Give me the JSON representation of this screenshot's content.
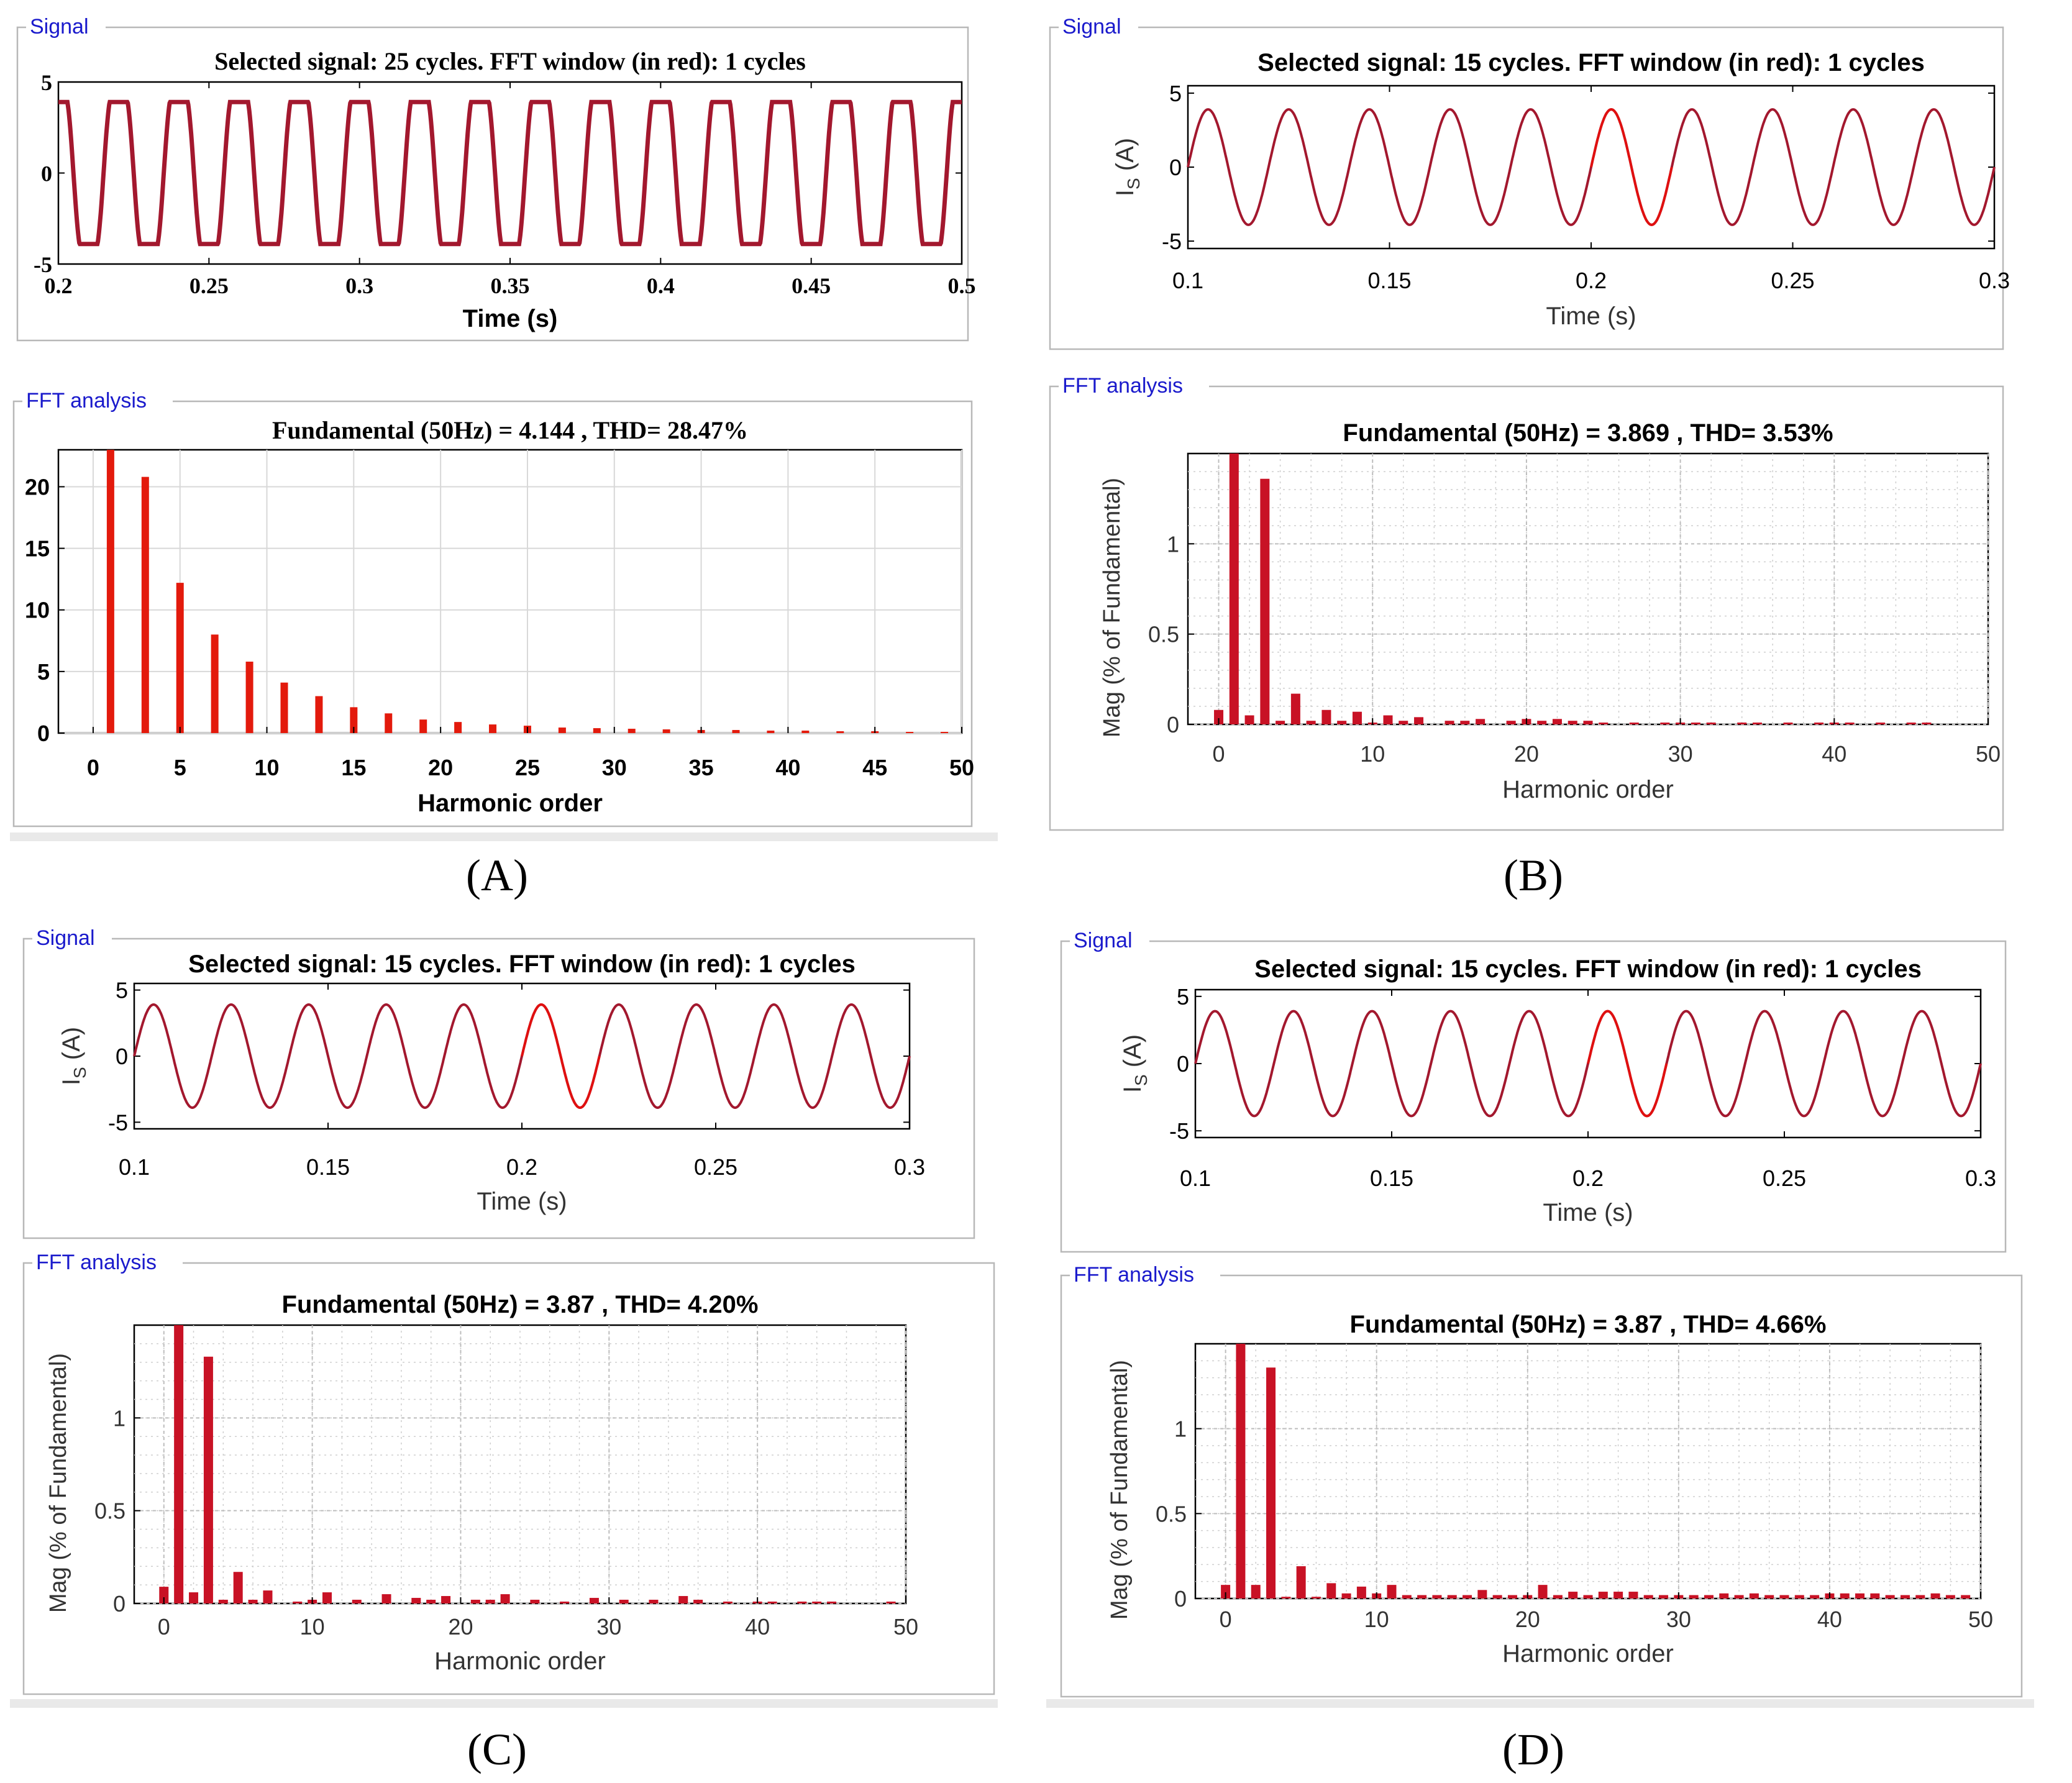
{
  "colors": {
    "signal_line": "#a3182e",
    "fft_window": "#e01010",
    "bar_A": "#e31a0c",
    "bar_other": "#c81225",
    "group_title": "#1a1acc",
    "axis": "#000000",
    "grid": "#d8d8d8"
  },
  "panels": [
    {
      "id": "A",
      "caption": "(A)",
      "style": "serif",
      "signal": {
        "group_title": "Signal",
        "chart_data": {
          "type": "line",
          "title": "Selected signal: 25 cycles. FFT window (in red): 1 cycles",
          "xlabel": "Time (s)",
          "ylabel": "",
          "xlim": [
            0.2,
            0.5
          ],
          "ylim": [
            -5,
            5
          ],
          "xticks": [
            0.2,
            0.25,
            0.3,
            0.35,
            0.4,
            0.45,
            0.5
          ],
          "xtick_labels": [
            "0.2",
            "0.25",
            "0.3",
            "0.35",
            "0.4",
            "0.45",
            "0.5"
          ],
          "yticks": [
            -5,
            0,
            5
          ],
          "ytick_labels": [
            "-5",
            "0",
            "5"
          ],
          "waveform": "distorted",
          "frequency_hz": 50,
          "amplitude": 3.9,
          "phase_cycles": 0.25,
          "window": null
        }
      },
      "fft": {
        "group_title": "FFT analysis",
        "chart_data": {
          "type": "bar",
          "title": "Fundamental (50Hz) = 4.144 , THD= 28.47%",
          "xlabel": "Harmonic order",
          "ylabel": "",
          "xlim": [
            -2,
            50
          ],
          "ylim": [
            0,
            23
          ],
          "xticks": [
            0,
            5,
            10,
            15,
            20,
            25,
            30,
            35,
            40,
            45,
            50
          ],
          "xtick_labels": [
            "0",
            "5",
            "10",
            "15",
            "20",
            "25",
            "30",
            "35",
            "40",
            "45",
            "50"
          ],
          "yticks": [
            0,
            5,
            10,
            15,
            20
          ],
          "ytick_labels": [
            "0",
            "5",
            "10",
            "15",
            "20"
          ],
          "grid": "major",
          "bars": [
            [
              1,
              23
            ],
            [
              3,
              20.8
            ],
            [
              5,
              12.2
            ],
            [
              7,
              8
            ],
            [
              9,
              5.8
            ],
            [
              11,
              4.1
            ],
            [
              13,
              3
            ],
            [
              15,
              2.1
            ],
            [
              17,
              1.6
            ],
            [
              19,
              1.1
            ],
            [
              21,
              0.9
            ],
            [
              23,
              0.7
            ],
            [
              25,
              0.6
            ],
            [
              27,
              0.45
            ],
            [
              29,
              0.4
            ],
            [
              31,
              0.35
            ],
            [
              33,
              0.3
            ],
            [
              35,
              0.25
            ],
            [
              37,
              0.25
            ],
            [
              39,
              0.2
            ],
            [
              41,
              0.2
            ],
            [
              43,
              0.15
            ],
            [
              45,
              0.15
            ],
            [
              47,
              0.1
            ],
            [
              49,
              0.1
            ]
          ]
        }
      }
    },
    {
      "id": "B",
      "caption": "(B)",
      "style": "sans",
      "signal": {
        "group_title": "Signal",
        "chart_data": {
          "type": "line",
          "title": "Selected signal: 15 cycles. FFT window (in red): 1 cycles",
          "xlabel": "Time (s)",
          "ylabel_main": "I",
          "ylabel_sub": "S",
          "ylabel_unit": " (A)",
          "xlim": [
            0.1,
            0.3
          ],
          "ylim": [
            -5.5,
            5.5
          ],
          "xticks": [
            0.1,
            0.15,
            0.2,
            0.25,
            0.3
          ],
          "xtick_labels": [
            "0.1",
            "0.15",
            "0.2",
            "0.25",
            "0.3"
          ],
          "yticks": [
            -5,
            0,
            5
          ],
          "ytick_labels": [
            "-5",
            "0",
            "5"
          ],
          "waveform": "sine",
          "frequency_hz": 50,
          "amplitude": 3.9,
          "phase_cycles": 0,
          "window": [
            0.2,
            0.22
          ]
        }
      },
      "fft": {
        "group_title": "FFT analysis",
        "chart_data": {
          "type": "bar",
          "title": "Fundamental (50Hz) = 3.869 , THD= 3.53%",
          "xlabel": "Harmonic order",
          "ylabel": "Mag (% of Fundamental)",
          "xlim": [
            -2,
            50
          ],
          "ylim": [
            0,
            1.5
          ],
          "xticks": [
            0,
            10,
            20,
            30,
            40,
            50
          ],
          "xtick_labels": [
            "0",
            "10",
            "20",
            "30",
            "40",
            "50"
          ],
          "yticks": [
            0,
            0.5,
            1
          ],
          "ytick_labels": [
            "0",
            "0.5",
            "1"
          ],
          "grid": "minor",
          "bars": [
            [
              0,
              0.08
            ],
            [
              1,
              1.5
            ],
            [
              2,
              0.05
            ],
            [
              3,
              1.36
            ],
            [
              4,
              0.02
            ],
            [
              5,
              0.17
            ],
            [
              6,
              0.02
            ],
            [
              7,
              0.08
            ],
            [
              8,
              0.02
            ],
            [
              9,
              0.07
            ],
            [
              10,
              0.01
            ],
            [
              11,
              0.05
            ],
            [
              12,
              0.02
            ],
            [
              13,
              0.04
            ],
            [
              15,
              0.02
            ],
            [
              16,
              0.02
            ],
            [
              17,
              0.03
            ],
            [
              19,
              0.02
            ],
            [
              20,
              0.03
            ],
            [
              21,
              0.02
            ],
            [
              22,
              0.03
            ],
            [
              23,
              0.02
            ],
            [
              24,
              0.02
            ],
            [
              25,
              0.01
            ],
            [
              27,
              0.01
            ],
            [
              29,
              0.01
            ],
            [
              30,
              0.01
            ],
            [
              31,
              0.01
            ],
            [
              32,
              0.01
            ],
            [
              34,
              0.01
            ],
            [
              35,
              0.01
            ],
            [
              37,
              0.01
            ],
            [
              39,
              0.01
            ],
            [
              40,
              0.01
            ],
            [
              41,
              0.01
            ],
            [
              43,
              0.01
            ],
            [
              45,
              0.01
            ],
            [
              46,
              0.01
            ]
          ]
        }
      }
    },
    {
      "id": "C",
      "caption": "(C)",
      "style": "sans",
      "signal": {
        "group_title": "Signal",
        "chart_data": {
          "type": "line",
          "title": "Selected signal: 15 cycles. FFT window (in red): 1 cycles",
          "xlabel": "Time (s)",
          "ylabel_main": "I",
          "ylabel_sub": "S",
          "ylabel_unit": " (A)",
          "xlim": [
            0.1,
            0.3
          ],
          "ylim": [
            -5.5,
            5.5
          ],
          "xticks": [
            0.1,
            0.15,
            0.2,
            0.25,
            0.3
          ],
          "xtick_labels": [
            "0.1",
            "0.15",
            "0.2",
            "0.25",
            "0.3"
          ],
          "yticks": [
            -5,
            0,
            5
          ],
          "ytick_labels": [
            "-5",
            "0",
            "5"
          ],
          "waveform": "sine",
          "frequency_hz": 50,
          "amplitude": 3.9,
          "phase_cycles": 0,
          "window": [
            0.2,
            0.22
          ]
        }
      },
      "fft": {
        "group_title": "FFT analysis",
        "chart_data": {
          "type": "bar",
          "title": "Fundamental (50Hz) = 3.87 , THD= 4.20%",
          "xlabel": "Harmonic order",
          "ylabel": "Mag (% of Fundamental)",
          "xlim": [
            -2,
            50
          ],
          "ylim": [
            0,
            1.5
          ],
          "xticks": [
            0,
            10,
            20,
            30,
            40,
            50
          ],
          "xtick_labels": [
            "0",
            "10",
            "20",
            "30",
            "40",
            "50"
          ],
          "yticks": [
            0,
            0.5,
            1
          ],
          "ytick_labels": [
            "0",
            "0.5",
            "1"
          ],
          "grid": "minor",
          "bars": [
            [
              0,
              0.09
            ],
            [
              1,
              1.5
            ],
            [
              2,
              0.06
            ],
            [
              3,
              1.33
            ],
            [
              4,
              0.02
            ],
            [
              5,
              0.17
            ],
            [
              6,
              0.02
            ],
            [
              7,
              0.07
            ],
            [
              9,
              0.01
            ],
            [
              10,
              0.02
            ],
            [
              11,
              0.06
            ],
            [
              13,
              0.02
            ],
            [
              15,
              0.05
            ],
            [
              17,
              0.03
            ],
            [
              18,
              0.02
            ],
            [
              19,
              0.04
            ],
            [
              21,
              0.02
            ],
            [
              22,
              0.02
            ],
            [
              23,
              0.05
            ],
            [
              25,
              0.02
            ],
            [
              27,
              0.01
            ],
            [
              29,
              0.03
            ],
            [
              31,
              0.02
            ],
            [
              33,
              0.02
            ],
            [
              35,
              0.04
            ],
            [
              36,
              0.02
            ],
            [
              38,
              0.01
            ],
            [
              40,
              0.01
            ],
            [
              41,
              0.01
            ],
            [
              43,
              0.01
            ],
            [
              44,
              0.01
            ],
            [
              45,
              0.01
            ],
            [
              49,
              0.01
            ]
          ]
        }
      }
    },
    {
      "id": "D",
      "caption": "(D)",
      "style": "sans",
      "signal": {
        "group_title": "Signal",
        "chart_data": {
          "type": "line",
          "title": "Selected signal: 15 cycles. FFT window (in red): 1 cycles",
          "xlabel": "Time (s)",
          "ylabel_main": "I",
          "ylabel_sub": "S",
          "ylabel_unit": " (A)",
          "xlim": [
            0.1,
            0.3
          ],
          "ylim": [
            -5.5,
            5.5
          ],
          "xticks": [
            0.1,
            0.15,
            0.2,
            0.25,
            0.3
          ],
          "xtick_labels": [
            "0.1",
            "0.15",
            "0.2",
            "0.25",
            "0.3"
          ],
          "yticks": [
            -5,
            0,
            5
          ],
          "ytick_labels": [
            "-5",
            "0",
            "5"
          ],
          "waveform": "sine",
          "frequency_hz": 50,
          "amplitude": 3.9,
          "phase_cycles": 0,
          "window": [
            0.2,
            0.22
          ]
        }
      },
      "fft": {
        "group_title": "FFT analysis",
        "chart_data": {
          "type": "bar",
          "title": "Fundamental (50Hz) = 3.87 , THD= 4.66%",
          "xlabel": "Harmonic order",
          "ylabel": "Mag (% of Fundamental)",
          "xlim": [
            -2,
            50
          ],
          "ylim": [
            0,
            1.5
          ],
          "xticks": [
            0,
            10,
            20,
            30,
            40,
            50
          ],
          "xtick_labels": [
            "0",
            "10",
            "20",
            "30",
            "40",
            "50"
          ],
          "yticks": [
            0,
            0.5,
            1
          ],
          "ytick_labels": [
            "0",
            "0.5",
            "1"
          ],
          "grid": "minor",
          "bars": [
            [
              0,
              0.08
            ],
            [
              1,
              1.5
            ],
            [
              2,
              0.08
            ],
            [
              3,
              1.36
            ],
            [
              4,
              0.01
            ],
            [
              5,
              0.19
            ],
            [
              6,
              0.01
            ],
            [
              7,
              0.09
            ],
            [
              8,
              0.03
            ],
            [
              9,
              0.07
            ],
            [
              10,
              0.03
            ],
            [
              11,
              0.08
            ],
            [
              12,
              0.02
            ],
            [
              13,
              0.02
            ],
            [
              14,
              0.02
            ],
            [
              15,
              0.02
            ],
            [
              16,
              0.02
            ],
            [
              17,
              0.05
            ],
            [
              18,
              0.02
            ],
            [
              19,
              0.02
            ],
            [
              20,
              0.02
            ],
            [
              21,
              0.08
            ],
            [
              22,
              0.02
            ],
            [
              23,
              0.04
            ],
            [
              24,
              0.02
            ],
            [
              25,
              0.04
            ],
            [
              26,
              0.04
            ],
            [
              27,
              0.04
            ],
            [
              28,
              0.02
            ],
            [
              29,
              0.02
            ],
            [
              30,
              0.02
            ],
            [
              31,
              0.02
            ],
            [
              32,
              0.02
            ],
            [
              33,
              0.03
            ],
            [
              34,
              0.02
            ],
            [
              35,
              0.03
            ],
            [
              36,
              0.02
            ],
            [
              37,
              0.02
            ],
            [
              38,
              0.02
            ],
            [
              39,
              0.02
            ],
            [
              40,
              0.03
            ],
            [
              41,
              0.03
            ],
            [
              42,
              0.03
            ],
            [
              43,
              0.03
            ],
            [
              44,
              0.02
            ],
            [
              45,
              0.02
            ],
            [
              46,
              0.02
            ],
            [
              47,
              0.03
            ],
            [
              48,
              0.02
            ],
            [
              49,
              0.02
            ]
          ]
        }
      }
    }
  ]
}
